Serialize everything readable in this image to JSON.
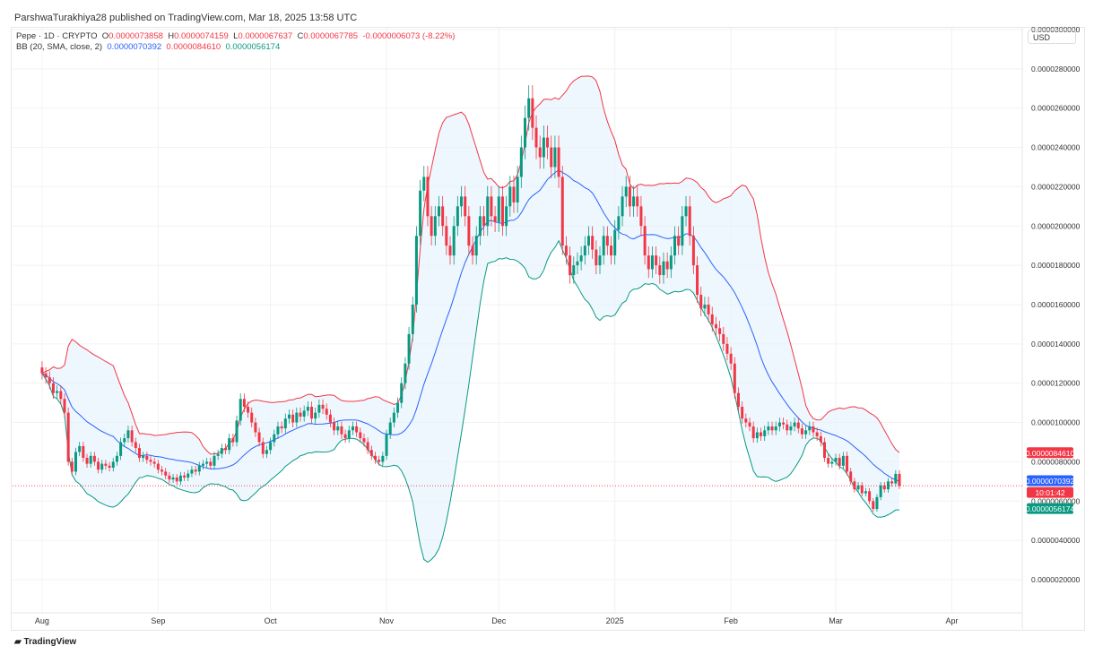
{
  "header": {
    "published": "ParshwaTurakhiya28 published on TradingView.com, Mar 18, 2025 13:58 UTC"
  },
  "legend": {
    "symbol": "Pepe · 1D · CRYPTO",
    "o_label": "O",
    "o": "0.0000073858",
    "h_label": "H",
    "h": "0.0000074159",
    "l_label": "L",
    "l": "0.0000067637",
    "c_label": "C",
    "c": "0.0000067785",
    "change": "-0.0000006073 (-8.22%)",
    "bb_label": "BB (20, SMA, close, 2)",
    "bb_basis": "0.0000070392",
    "bb_upper": "0.0000084610",
    "bb_lower": "0.0000056174"
  },
  "currency": "USD",
  "footer": {
    "brand": "TradingView"
  },
  "chart_data": {
    "type": "candlestick",
    "indicator": "Bollinger Bands (20, SMA, close, 2)",
    "last_date": "2025-03-18",
    "colors": {
      "up": "#089981",
      "down": "#f23645",
      "basis": "#2962ff",
      "upper": "#f23645",
      "lower": "#089981",
      "band_fill": "#e3f2fd"
    },
    "ylim": [
      0.0,
      3.1e-05
    ],
    "y_ticks": [
      "0.0000300000",
      "0.0000280000",
      "0.0000260000",
      "0.0000240000",
      "0.0000220000",
      "0.0000200000",
      "0.0000180000",
      "0.0000160000",
      "0.0000140000",
      "0.0000120000",
      "0.0000100000",
      "0.0000080000",
      "0.0000060000",
      "0.0000040000",
      "0.0000020000"
    ],
    "x_ticks": [
      {
        "label": "Aug",
        "date": "2024-08-01"
      },
      {
        "label": "Sep",
        "date": "2024-09-01"
      },
      {
        "label": "Oct",
        "date": "2024-10-01"
      },
      {
        "label": "Nov",
        "date": "2024-11-01"
      },
      {
        "label": "Dec",
        "date": "2024-12-01"
      },
      {
        "label": "2025",
        "date": "2025-01-01"
      },
      {
        "label": "Feb",
        "date": "2025-02-01"
      },
      {
        "label": "Mar",
        "date": "2025-03-01"
      },
      {
        "label": "Apr",
        "date": "2025-04-01"
      }
    ],
    "first_open": 1.28e-05,
    "closes": [
      1.25e-05,
      1.23e-05,
      1.2e-05,
      1.15e-05,
      1.16e-05,
      1.12e-05,
      1.05e-05,
      8e-06,
      7.5e-06,
      8.5e-06,
      8.8e-06,
      8.2e-06,
      7.9e-06,
      8.3e-06,
      8e-06,
      7.6e-06,
      7.9e-06,
      7.8e-06,
      7.7e-06,
      8e-06,
      8.3e-06,
      9e-06,
      9.2e-06,
      9.6e-06,
      9e-06,
      8.7e-06,
      8.2e-06,
      8.3e-06,
      8.1e-06,
      8e-06,
      7.9e-06,
      7.6e-06,
      7.5e-06,
      7.3e-06,
      7.1e-06,
      7.2e-06,
      7e-06,
      7.3e-06,
      7.2e-06,
      7.4e-06,
      7.6e-06,
      7.5e-06,
      7.8e-06,
      7.9e-06,
      8e-06,
      7.8e-06,
      8.3e-06,
      8.4e-06,
      8.7e-06,
      8.6e-06,
      9.2e-06,
      9e-06,
      1.01e-05,
      1.12e-05,
      1.08e-05,
      1.05e-05,
      1e-05,
      9.5e-06,
      9e-06,
      8.4e-06,
      8.6e-06,
      9e-06,
      9.4e-06,
      9.8e-06,
      9.7e-06,
      1.02e-05,
      1.04e-05,
      1e-05,
      1.05e-05,
      1.03e-05,
      1.06e-05,
      1.08e-05,
      1.02e-05,
      1.05e-05,
      1.09e-05,
      1.07e-05,
      1.04e-05,
      1e-05,
      9.6e-06,
      9.8e-06,
      9.4e-06,
      9.2e-06,
      9.6e-06,
      9.8e-06,
      9.5e-06,
      9.2e-06,
      9e-06,
      8.6e-06,
      8.3e-06,
      8.1e-06,
      8e-06,
      8.3e-06,
      9.4e-06,
      1e-05,
      1.05e-05,
      1.1e-05,
      1.2e-05,
      1.3e-05,
      1.45e-05,
      1.6e-05,
      1.95e-05,
      2.18e-05,
      2.25e-05,
      2.05e-05,
      1.95e-05,
      2.05e-05,
      2.1e-05,
      2e-05,
      1.9e-05,
      1.85e-05,
      2e-05,
      2.1e-05,
      2.15e-05,
      2.05e-05,
      1.9e-05,
      1.85e-05,
      1.95e-05,
      2.05e-05,
      2e-05,
      2.15e-05,
      2.05e-05,
      2.02e-05,
      2.15e-05,
      2e-05,
      2.1e-05,
      2.2e-05,
      2.12e-05,
      2.25e-05,
      2.4e-05,
      2.55e-05,
      2.65e-05,
      2.5e-05,
      2.4e-05,
      2.35e-05,
      2.45e-05,
      2.4e-05,
      2.3e-05,
      2.4e-05,
      2.25e-05,
      1.9e-05,
      1.85e-05,
      1.75e-05,
      1.8e-05,
      1.82e-05,
      1.85e-05,
      1.9e-05,
      1.95e-05,
      1.88e-05,
      1.8e-05,
      1.85e-05,
      1.95e-05,
      1.9e-05,
      1.85e-05,
      1.98e-05,
      2.05e-05,
      2.15e-05,
      2.2e-05,
      2.1e-05,
      2.15e-05,
      2.1e-05,
      2e-05,
      1.85e-05,
      1.78e-05,
      1.85e-05,
      1.8e-05,
      1.75e-05,
      1.82e-05,
      1.78e-05,
      1.85e-05,
      1.95e-05,
      1.9e-05,
      2.05e-05,
      2.1e-05,
      1.95e-05,
      1.8e-05,
      1.65e-05,
      1.58e-05,
      1.6e-05,
      1.55e-05,
      1.5e-05,
      1.48e-05,
      1.45e-05,
      1.4e-05,
      1.35e-05,
      1.3e-05,
      1.15e-05,
      1.08e-05,
      1.02e-05,
      1e-05,
      9.8e-06,
      9.2e-06,
      9.5e-06,
      9.3e-06,
      9.6e-06,
      9.8e-06,
      9.6e-06,
      9.8e-06,
      1e-05,
      9.9e-06,
      9.6e-06,
      9.8e-06,
      1e-05,
      9.7e-06,
      9.4e-06,
      9.6e-06,
      9.8e-06,
      9.5e-06,
      9.3e-06,
      9e-06,
      8.2e-06,
      7.9e-06,
      8e-06,
      8.2e-06,
      7.8e-06,
      8.3e-06,
      7.5e-06,
      7e-06,
      6.6e-06,
      6.8e-06,
      6.4e-06,
      6.5e-06,
      6e-06,
      5.6e-06,
      6.2e-06,
      6.8e-06,
      6.6e-06,
      7e-06,
      6.9e-06,
      7.3858e-06,
      6.7785e-06
    ],
    "price_labels": {
      "upper": "0.0000084610",
      "basis": "0.0000070392",
      "countdown": "10:01:42",
      "lower": "0.0000056174"
    },
    "grid": true
  }
}
